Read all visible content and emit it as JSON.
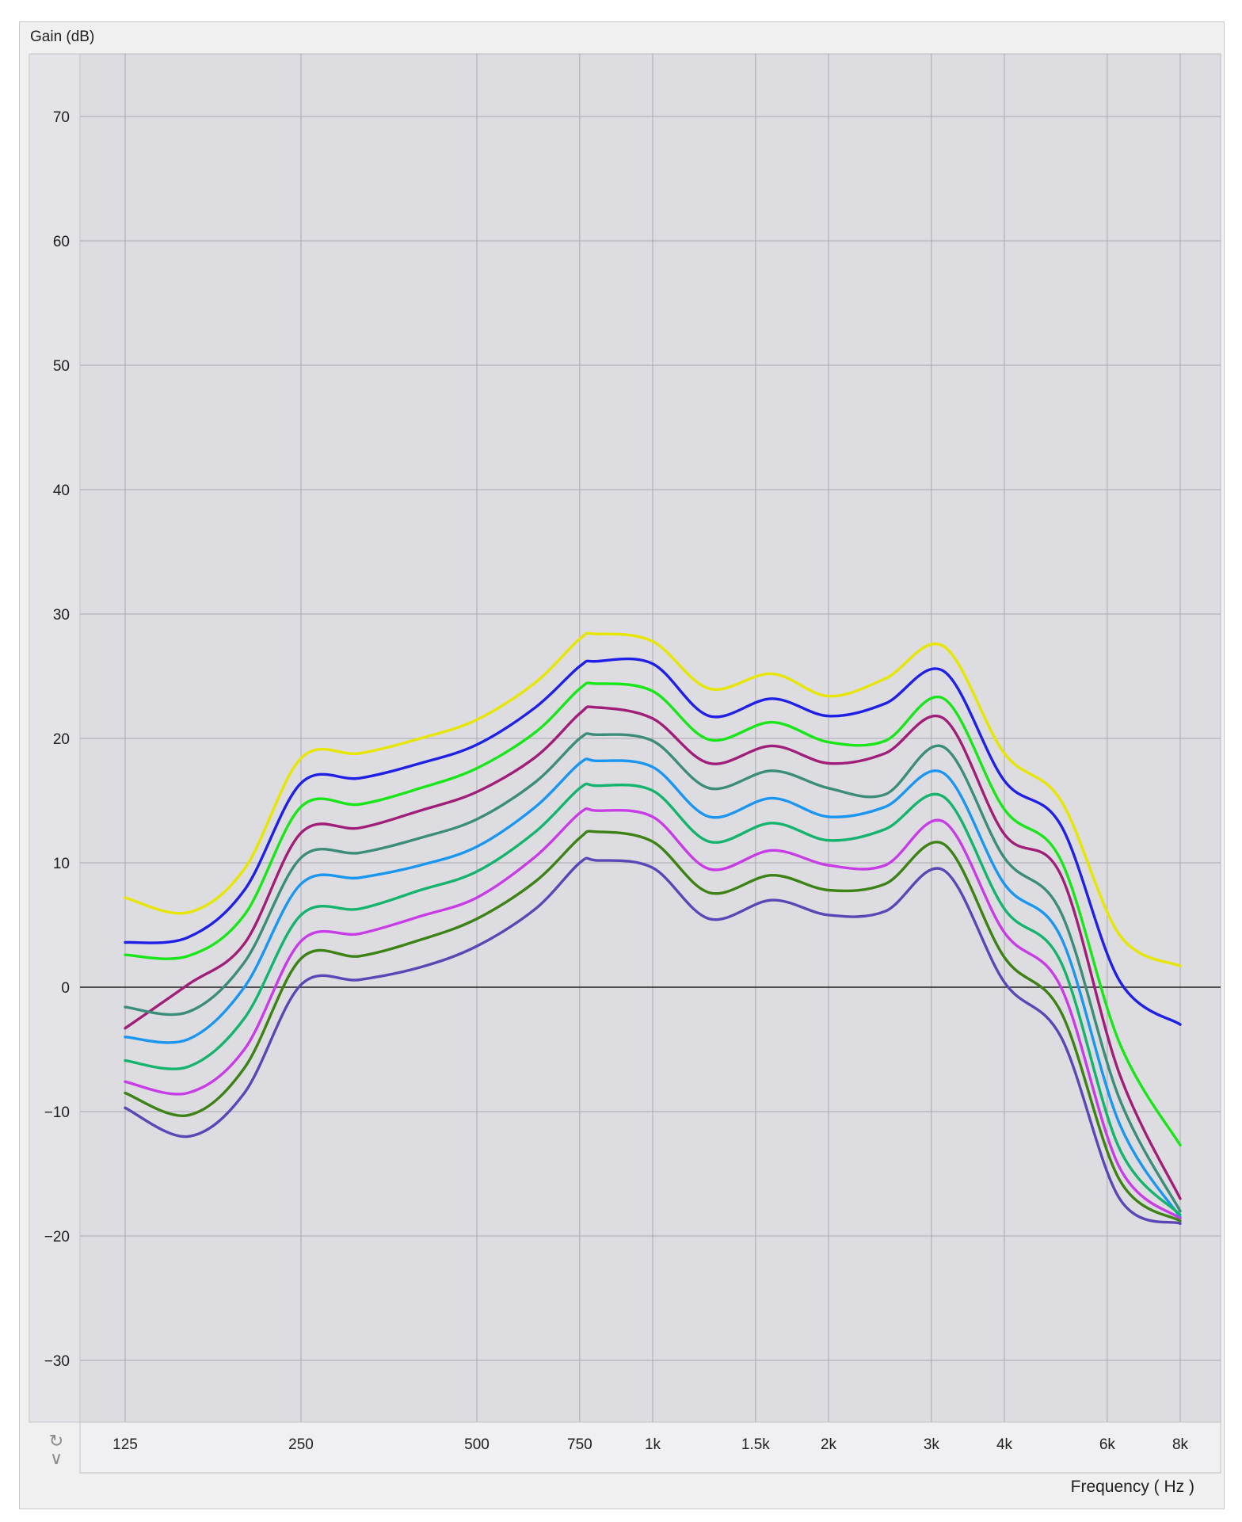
{
  "chart_data": {
    "type": "line",
    "ylabel": "Gain (dB)",
    "xlabel": "Frequency ( Hz )",
    "xscale": "log",
    "xlim": [
      125,
      8000
    ],
    "ylim": [
      -35,
      75
    ],
    "yticks": [
      70,
      60,
      50,
      40,
      30,
      20,
      10,
      0,
      -10,
      -20,
      -30
    ],
    "xticks": [
      {
        "value": 125,
        "label": "125"
      },
      {
        "value": 250,
        "label": "250"
      },
      {
        "value": 500,
        "label": "500"
      },
      {
        "value": 750,
        "label": "750"
      },
      {
        "value": 1000,
        "label": "1k"
      },
      {
        "value": 1500,
        "label": "1.5k"
      },
      {
        "value": 2000,
        "label": "2k"
      },
      {
        "value": 3000,
        "label": "3k"
      },
      {
        "value": 4000,
        "label": "4k"
      },
      {
        "value": 6000,
        "label": "6k"
      },
      {
        "value": 8000,
        "label": "8k"
      }
    ],
    "grid": true,
    "x": [
      125,
      160,
      200,
      250,
      315,
      400,
      500,
      630,
      750,
      800,
      1000,
      1250,
      1600,
      2000,
      2500,
      3150,
      4000,
      5000,
      6300,
      8000
    ],
    "series": [
      {
        "color": "#e6e600",
        "values": [
          7.2,
          6.0,
          9.5,
          18.4,
          18.8,
          20.0,
          21.5,
          24.5,
          28.0,
          28.4,
          27.8,
          24.0,
          25.2,
          23.4,
          24.8,
          27.4,
          18.8,
          15.0,
          4.2,
          1.7
        ]
      },
      {
        "color": "#1f1fe6",
        "values": [
          3.6,
          4.0,
          7.8,
          16.4,
          16.8,
          18.0,
          19.5,
          22.5,
          25.8,
          26.2,
          26.0,
          21.8,
          23.2,
          21.8,
          22.8,
          25.4,
          16.6,
          13.0,
          0.5,
          -3.0
        ]
      },
      {
        "color": "#19e619",
        "values": [
          2.6,
          2.5,
          5.8,
          14.5,
          14.7,
          16.0,
          17.6,
          20.5,
          24.0,
          24.4,
          23.8,
          19.9,
          21.3,
          19.7,
          19.8,
          23.2,
          14.3,
          10.2,
          -4.5,
          -12.7
        ]
      },
      {
        "color": "#a01e78",
        "values": [
          -3.3,
          0.2,
          3.5,
          12.4,
          12.8,
          14.2,
          15.7,
          18.5,
          22.0,
          22.5,
          21.6,
          18.0,
          19.4,
          18.0,
          18.8,
          21.6,
          12.3,
          9.0,
          -7.0,
          -17.0
        ]
      },
      {
        "color": "#3c8c7a",
        "values": [
          -1.6,
          -2.0,
          2.0,
          10.4,
          10.8,
          12.0,
          13.5,
          16.5,
          20.0,
          20.3,
          19.8,
          16.0,
          17.4,
          16.0,
          15.5,
          19.3,
          10.4,
          6.0,
          -9.0,
          -18.0
        ]
      },
      {
        "color": "#1a96f0",
        "values": [
          -4.0,
          -4.2,
          0.0,
          8.3,
          8.8,
          9.8,
          11.3,
          14.5,
          18.0,
          18.2,
          17.7,
          13.7,
          15.2,
          13.7,
          14.5,
          17.2,
          8.3,
          4.0,
          -11.0,
          -18.5
        ]
      },
      {
        "color": "#14b46e",
        "values": [
          -5.9,
          -6.4,
          -2.5,
          5.8,
          6.3,
          7.8,
          9.3,
          12.5,
          16.0,
          16.2,
          15.8,
          11.7,
          13.2,
          11.8,
          12.7,
          15.3,
          6.3,
          2.0,
          -13.0,
          -18.3
        ]
      },
      {
        "color": "#c83ce6",
        "values": [
          -7.6,
          -8.5,
          -5.0,
          3.7,
          4.3,
          5.7,
          7.2,
          10.5,
          14.0,
          14.2,
          13.7,
          9.5,
          11.0,
          9.8,
          9.8,
          13.3,
          4.4,
          0.0,
          -14.5,
          -18.6
        ]
      },
      {
        "color": "#3c8214",
        "values": [
          -8.5,
          -10.3,
          -6.5,
          2.3,
          2.5,
          3.8,
          5.5,
          8.5,
          12.0,
          12.5,
          11.7,
          7.6,
          9.0,
          7.8,
          8.3,
          11.5,
          2.4,
          -2.0,
          -15.5,
          -18.8
        ]
      },
      {
        "color": "#5a46b4",
        "values": [
          -9.7,
          -12.0,
          -8.5,
          0.2,
          0.6,
          1.6,
          3.3,
          6.3,
          10.0,
          10.2,
          9.6,
          5.5,
          7.0,
          5.8,
          6.1,
          9.4,
          0.4,
          -4.0,
          -17.0,
          -19.0
        ]
      }
    ]
  }
}
